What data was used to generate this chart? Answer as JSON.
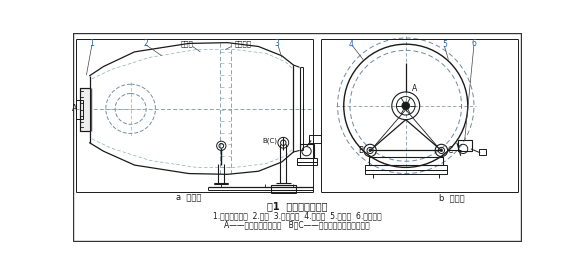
{
  "title": "图1  辅助滚道磨削机",
  "caption_line1": "1.法兰盘组合体  2.底架  3.滚轮机构  4.三角架  5.连接架  6.磨削装置",
  "caption_line2": "A——法兰盘组合体支点   B、C——主滚道与滚轮架机构支点",
  "label_a_view": "a  主视图",
  "label_b_view": "b  截面图",
  "label_jbg": "摔拌罐",
  "label_fzld": "辅助滚道",
  "bg_color": "#ffffff",
  "line_color": "#1a1a1a",
  "num_color": "#2060a0",
  "label_color": "#1a1a1a"
}
